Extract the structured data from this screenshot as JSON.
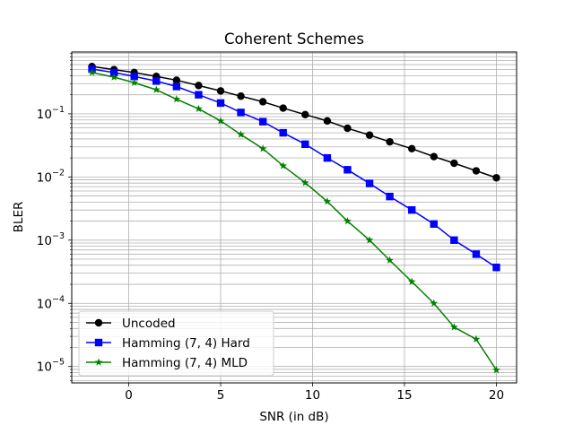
{
  "chart_data": {
    "type": "line",
    "title": "Coherent Schemes",
    "xlabel": "SNR (in dB)",
    "ylabel": "BLER",
    "yscale": "log",
    "grid": "on (major and minor)",
    "legend_position": "lower-left",
    "xlim": [
      -3.1,
      21.1
    ],
    "ylim": [
      5.5e-06,
      0.95
    ],
    "xticks": [
      0,
      5,
      10,
      15,
      20
    ],
    "xtick_labels": [
      "0",
      "5",
      "10",
      "15",
      "20"
    ],
    "yticks": [
      1e-05,
      0.0001,
      0.001,
      0.01,
      0.1
    ],
    "ytick_labels": [
      {
        "base": "10",
        "exp": "−5"
      },
      {
        "base": "10",
        "exp": "−4"
      },
      {
        "base": "10",
        "exp": "−3"
      },
      {
        "base": "10",
        "exp": "−2"
      },
      {
        "base": "10",
        "exp": "−1"
      }
    ],
    "x": [
      -2,
      -0.8,
      0.3,
      1.5,
      2.6,
      3.8,
      5.0,
      6.1,
      7.3,
      8.4,
      9.6,
      10.8,
      11.9,
      13.1,
      14.2,
      15.4,
      16.6,
      17.7,
      18.9,
      20.0
    ],
    "series": [
      {
        "name": "Uncoded",
        "color": "#000000",
        "marker": "circle",
        "values": [
          0.56,
          0.5,
          0.45,
          0.39,
          0.34,
          0.28,
          0.23,
          0.19,
          0.155,
          0.123,
          0.097,
          0.077,
          0.059,
          0.046,
          0.036,
          0.028,
          0.021,
          0.0165,
          0.0125,
          0.0097
        ]
      },
      {
        "name": "Hamming (7, 4) Hard",
        "color": "#0000ff",
        "marker": "square",
        "values": [
          0.51,
          0.45,
          0.39,
          0.33,
          0.27,
          0.2,
          0.148,
          0.105,
          0.075,
          0.05,
          0.033,
          0.02,
          0.013,
          0.0079,
          0.0049,
          0.003,
          0.0018,
          0.001,
          0.0006,
          0.00037
        ]
      },
      {
        "name": "Hamming (7, 4) MLD",
        "color": "#008000",
        "marker": "star",
        "values": [
          0.45,
          0.38,
          0.31,
          0.24,
          0.17,
          0.12,
          0.077,
          0.047,
          0.028,
          0.015,
          0.0081,
          0.0041,
          0.002,
          0.001,
          0.00048,
          0.00022,
          0.0001,
          4.2e-05,
          2.7e-05,
          8.8e-06
        ]
      }
    ]
  }
}
